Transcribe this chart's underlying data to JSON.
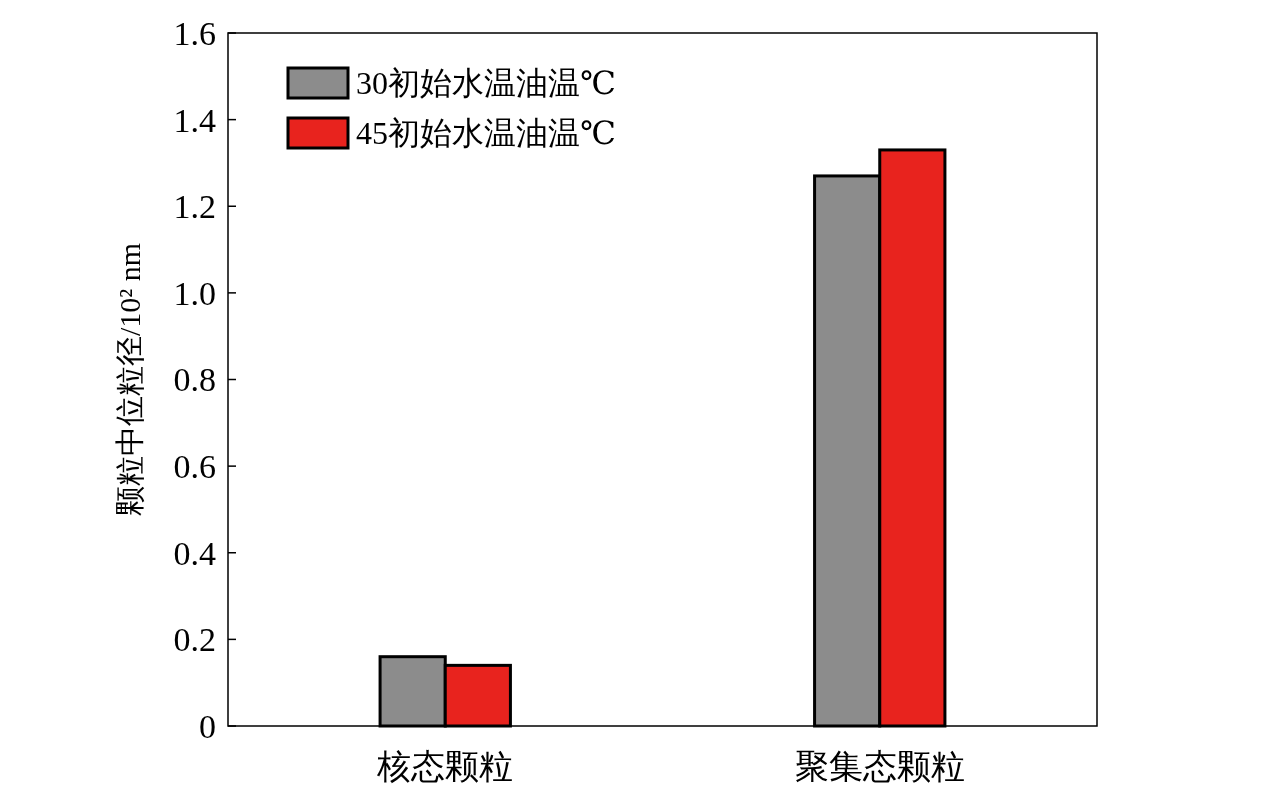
{
  "chart_data": {
    "type": "bar",
    "ylabel": "颗粒中位粒径/10² nm",
    "categories": [
      "核态颗粒",
      "聚集态颗粒"
    ],
    "series": [
      {
        "name": "30初始水温油温℃",
        "color": "#8c8c8c",
        "values": [
          0.16,
          1.27
        ]
      },
      {
        "name": "45初始水温油温℃",
        "color": "#e8231e",
        "values": [
          0.14,
          1.33
        ]
      }
    ],
    "ylim": [
      0,
      1.6
    ],
    "yticks": [
      {
        "value": 0,
        "label": "0"
      },
      0.2,
      0.4,
      0.6,
      0.8,
      {
        "value": 1.0,
        "label": "1.0"
      },
      1.2,
      1.4,
      1.6
    ],
    "legend": "top left"
  }
}
